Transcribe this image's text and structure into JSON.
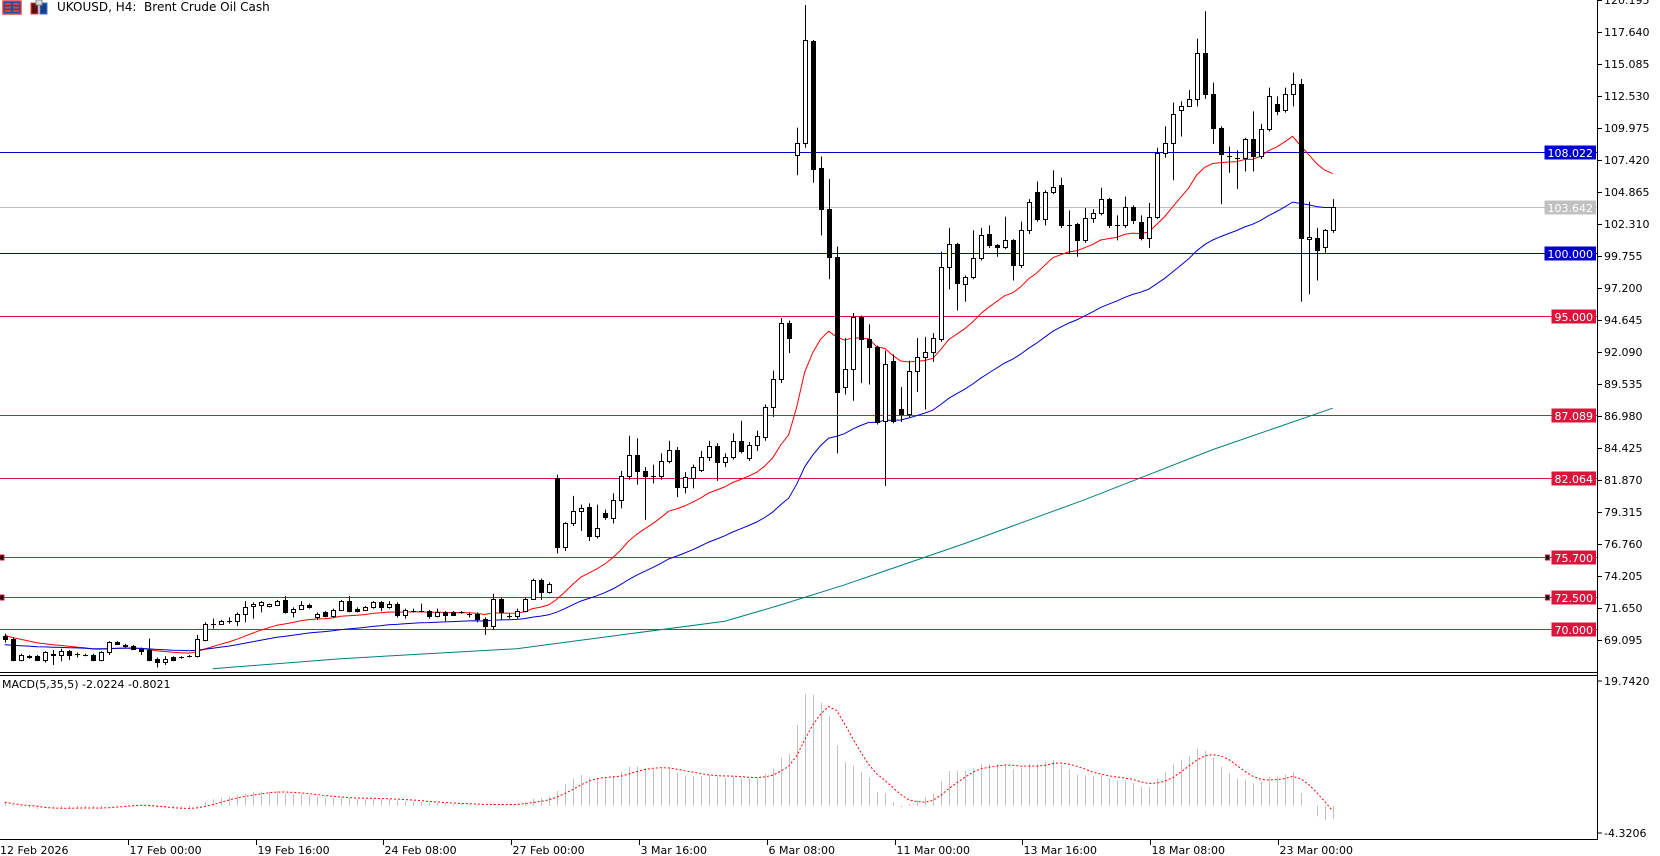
{
  "header": {
    "title": "UKOUSD, H4:  Brent Crude Oil Cash",
    "icons": [
      "one-click-trading-icon",
      "chart-trade-icon"
    ]
  },
  "colors": {
    "bull_body": "#ffffff",
    "bear_body": "#000000",
    "candle_outline": "#000000",
    "ma_fast": "#ff0000",
    "ma_medium": "#0000cd",
    "ma_slow": "#008080",
    "level_red": "#dc143c",
    "level_blue": "#0000cd",
    "bid_line": "#c0c0c0",
    "macd_histogram": "#c0c0c0",
    "macd_signal": "#ff0000"
  },
  "price_axis": {
    "ticks": [
      "120.195",
      "117.640",
      "115.085",
      "112.530",
      "109.975",
      "107.420",
      "104.865",
      "102.310",
      "99.755",
      "97.200",
      "94.645",
      "92.090",
      "89.535",
      "86.980",
      "84.425",
      "81.870",
      "79.315",
      "76.760",
      "74.205",
      "71.650",
      "69.095"
    ]
  },
  "levels": [
    {
      "value": "108.022",
      "color": "#0000cd",
      "label_text": "#ffffff"
    },
    {
      "value": "103.642",
      "color": "#c0c0c0",
      "label_text": "#ffffff"
    },
    {
      "value": "100.000",
      "color": "#0000cd",
      "label_text": "#ffffff"
    },
    {
      "value": "95.000",
      "color": "#dc143c",
      "label_text": "#ffffff"
    },
    {
      "value": "87.089",
      "color": "#dc143c",
      "label_text": "#ffffff"
    },
    {
      "value": "82.064",
      "color": "#dc143c",
      "label_text": "#ffffff"
    },
    {
      "value": "75.700",
      "color": "#dc143c",
      "label_text": "#ffffff",
      "selected": true
    },
    {
      "value": "72.500",
      "color": "#dc143c",
      "label_text": "#ffffff",
      "selected": true
    },
    {
      "value": "70.000",
      "color": "#dc143c",
      "label_text": "#ffffff"
    }
  ],
  "time_axis": {
    "labels": [
      "12 Feb 2026",
      "17 Feb 00:00",
      "19 Feb 16:00",
      "24 Feb 08:00",
      "27 Feb 00:00",
      "3 Mar 16:00",
      "6 Mar 08:00",
      "11 Mar 00:00",
      "13 Mar 16:00",
      "18 Mar 08:00",
      "23 Mar 00:00"
    ]
  },
  "macd": {
    "label": "MACD(5,35,5) -2.0224 -0.8021",
    "scale_max": "19.7420",
    "scale_min": "-4.3206",
    "fast": 5,
    "slow": 35,
    "signal": 5
  },
  "chart_data": {
    "type": "candlestick",
    "symbol": "UKOUSD",
    "timeframe": "H4",
    "ylim": [
      67.5,
      120.195
    ],
    "moving_averages": [
      {
        "color": "#ff0000",
        "kind": "ema",
        "period": 20
      },
      {
        "color": "#0000cd",
        "kind": "ema",
        "period": 50
      }
    ],
    "slow_ma_points": [
      [
        26,
        66.8
      ],
      [
        42,
        67.6
      ],
      [
        64,
        68.4
      ],
      [
        90,
        70.6
      ],
      [
        97,
        71.9
      ],
      [
        105,
        73.5
      ],
      [
        120,
        76.8
      ],
      [
        135,
        80.3
      ],
      [
        151,
        84.3
      ],
      [
        166,
        87.6
      ]
    ],
    "ohlc": [
      [
        69.4,
        69.6,
        68.9,
        69.2
      ],
      [
        69.2,
        69.3,
        67.4,
        67.5
      ],
      [
        67.5,
        68.0,
        67.4,
        67.9
      ],
      [
        67.8,
        67.9,
        67.6,
        67.7
      ],
      [
        67.8,
        67.9,
        67.5,
        67.5
      ],
      [
        67.5,
        68.2,
        67.3,
        68.1
      ],
      [
        68.0,
        68.3,
        67.1,
        67.9
      ],
      [
        67.9,
        68.4,
        67.4,
        68.2
      ],
      [
        68.2,
        68.3,
        67.5,
        67.9
      ],
      [
        67.95,
        68.1,
        67.7,
        67.95
      ],
      [
        67.9,
        68.0,
        67.8,
        67.9
      ],
      [
        67.9,
        68.0,
        67.4,
        67.5
      ],
      [
        67.5,
        68.2,
        67.4,
        68.1
      ],
      [
        68.1,
        69.0,
        67.9,
        68.9
      ],
      [
        68.9,
        69.0,
        68.7,
        68.8
      ],
      [
        68.7,
        68.8,
        68.5,
        68.6
      ],
      [
        68.6,
        68.7,
        68.3,
        68.4
      ],
      [
        68.4,
        68.5,
        67.9,
        68.2
      ],
      [
        68.3,
        69.2,
        67.4,
        67.5
      ],
      [
        67.6,
        67.7,
        66.9,
        67.3
      ],
      [
        67.3,
        67.8,
        67.1,
        67.6
      ],
      [
        67.7,
        67.8,
        67.4,
        67.5
      ],
      [
        67.75,
        67.8,
        67.6,
        67.75
      ],
      [
        67.8,
        67.9,
        67.7,
        67.8
      ],
      [
        67.8,
        69.5,
        67.7,
        69.2
      ],
      [
        69.1,
        70.5,
        69.0,
        70.4
      ],
      [
        70.4,
        70.8,
        70.0,
        70.4
      ],
      [
        70.4,
        70.7,
        70.3,
        70.6
      ],
      [
        70.6,
        70.9,
        70.4,
        70.6
      ],
      [
        70.6,
        71.3,
        70.2,
        71.2
      ],
      [
        71.2,
        72.2,
        70.5,
        71.75
      ],
      [
        71.8,
        72.1,
        70.8,
        71.95
      ],
      [
        71.9,
        72.2,
        71.3,
        72.1
      ],
      [
        71.8,
        72.0,
        71.7,
        71.95
      ],
      [
        71.9,
        72.3,
        71.8,
        72.2
      ],
      [
        72.3,
        72.6,
        71.2,
        71.3
      ],
      [
        71.3,
        71.7,
        70.9,
        71.6
      ],
      [
        71.6,
        72.2,
        71.5,
        71.9
      ],
      [
        71.9,
        72.0,
        71.6,
        71.7
      ],
      [
        70.9,
        71.3,
        70.7,
        71.2
      ],
      [
        71.3,
        71.4,
        70.9,
        71.0
      ],
      [
        71.0,
        71.6,
        70.9,
        71.5
      ],
      [
        71.5,
        72.3,
        71.4,
        72.2
      ],
      [
        72.2,
        72.6,
        71.3,
        71.4
      ],
      [
        71.6,
        71.7,
        71.3,
        71.4
      ],
      [
        71.5,
        71.8,
        71.4,
        71.7
      ],
      [
        71.7,
        72.2,
        71.6,
        72.1
      ],
      [
        72.1,
        72.2,
        71.4,
        71.7
      ],
      [
        71.7,
        72.2,
        71.6,
        72.0
      ],
      [
        72.0,
        72.1,
        70.9,
        71.1
      ],
      [
        71.1,
        71.6,
        70.8,
        71.5
      ],
      [
        71.45,
        71.6,
        71.3,
        71.45
      ],
      [
        71.45,
        72.0,
        71.3,
        71.45
      ],
      [
        71.4,
        71.5,
        70.8,
        71.0
      ],
      [
        71.05,
        71.6,
        70.9,
        71.3
      ],
      [
        71.3,
        71.4,
        70.6,
        71.1
      ],
      [
        71.3,
        71.4,
        71.0,
        71.1
      ],
      [
        71.3,
        71.4,
        71.2,
        71.3
      ],
      [
        71.2,
        71.3,
        70.9,
        71.2
      ],
      [
        71.2,
        71.3,
        70.5,
        70.8
      ],
      [
        70.8,
        70.9,
        69.5,
        70.2
      ],
      [
        70.2,
        72.8,
        69.9,
        72.4
      ],
      [
        72.4,
        72.5,
        70.7,
        71.3
      ],
      [
        71.0,
        71.2,
        70.8,
        71.0
      ],
      [
        71.0,
        71.6,
        70.8,
        71.4
      ],
      [
        71.4,
        72.5,
        71.3,
        72.4
      ],
      [
        72.4,
        74.0,
        72.3,
        73.9
      ],
      [
        73.9,
        74.0,
        72.3,
        72.9
      ],
      [
        72.9,
        73.7,
        72.8,
        73.6
      ],
      [
        82.0,
        82.3,
        76.0,
        76.5
      ],
      [
        76.5,
        78.5,
        76.2,
        78.4
      ],
      [
        78.4,
        80.6,
        78.2,
        79.4
      ],
      [
        79.4,
        79.9,
        77.8,
        79.6
      ],
      [
        79.7,
        80.0,
        77.0,
        77.4
      ],
      [
        77.4,
        79.9,
        77.2,
        78.0
      ],
      [
        79.2,
        79.5,
        78.7,
        78.9
      ],
      [
        78.8,
        80.8,
        78.4,
        80.3
      ],
      [
        80.3,
        82.6,
        79.6,
        82.2
      ],
      [
        82.2,
        85.4,
        81.9,
        83.9
      ],
      [
        83.9,
        85.2,
        81.5,
        82.6
      ],
      [
        82.6,
        82.9,
        78.7,
        82.2
      ],
      [
        82.2,
        83.1,
        81.6,
        82.2
      ],
      [
        82.2,
        84.0,
        81.9,
        83.4
      ],
      [
        83.4,
        85.0,
        83.2,
        84.3
      ],
      [
        84.3,
        84.5,
        80.5,
        81.3
      ],
      [
        81.3,
        82.5,
        80.8,
        82.1
      ],
      [
        82.0,
        83.1,
        81.2,
        82.9
      ],
      [
        82.7,
        84.2,
        82.5,
        83.7
      ],
      [
        83.7,
        85.0,
        83.4,
        84.6
      ],
      [
        84.6,
        84.8,
        81.8,
        83.3
      ],
      [
        83.3,
        84.0,
        82.9,
        83.7
      ],
      [
        83.7,
        85.6,
        83.5,
        85.0
      ],
      [
        85.0,
        86.6,
        84.0,
        84.2
      ],
      [
        83.6,
        84.9,
        83.4,
        84.7
      ],
      [
        84.7,
        85.8,
        84.2,
        85.4
      ],
      [
        85.3,
        87.9,
        85.0,
        87.7
      ],
      [
        87.7,
        90.6,
        86.9,
        89.9
      ],
      [
        89.9,
        94.8,
        89.6,
        94.4
      ],
      [
        94.4,
        94.6,
        92.0,
        93.2
      ],
      [
        107.8,
        110.0,
        106.2,
        108.8
      ],
      [
        108.8,
        119.8,
        108.4,
        117.0
      ],
      [
        116.9,
        117.0,
        105.6,
        106.7
      ],
      [
        106.8,
        107.7,
        101.4,
        103.5
      ],
      [
        103.5,
        105.9,
        97.9,
        99.7
      ],
      [
        99.7,
        100.5,
        84.0,
        88.9
      ],
      [
        89.3,
        93.2,
        88.7,
        90.7
      ],
      [
        90.7,
        95.2,
        88.2,
        94.9
      ],
      [
        94.9,
        95.0,
        89.6,
        93.1
      ],
      [
        93.1,
        94.3,
        89.5,
        92.5
      ],
      [
        92.5,
        92.6,
        86.3,
        86.5
      ],
      [
        86.6,
        92.2,
        81.4,
        91.1
      ],
      [
        91.4,
        91.9,
        86.4,
        86.6
      ],
      [
        87.5,
        89.3,
        86.5,
        87.1
      ],
      [
        87.1,
        91.4,
        86.9,
        90.6
      ],
      [
        90.6,
        93.2,
        88.9,
        91.7
      ],
      [
        91.7,
        93.3,
        87.5,
        92.1
      ],
      [
        92.1,
        93.6,
        91.3,
        93.2
      ],
      [
        93.1,
        100.1,
        92.9,
        98.9
      ],
      [
        98.9,
        102.0,
        97.1,
        100.7
      ],
      [
        100.7,
        100.8,
        95.4,
        97.6
      ],
      [
        97.5,
        98.2,
        96.1,
        98.1
      ],
      [
        98.1,
        101.8,
        97.9,
        99.6
      ],
      [
        99.6,
        102.0,
        99.4,
        101.4
      ],
      [
        101.5,
        102.2,
        100.4,
        100.6
      ],
      [
        100.6,
        100.7,
        99.7,
        100.5
      ],
      [
        100.5,
        102.9,
        100.3,
        101.0
      ],
      [
        101.0,
        101.1,
        97.8,
        99.0
      ],
      [
        99.0,
        102.5,
        98.8,
        101.8
      ],
      [
        101.8,
        104.3,
        101.5,
        104.1
      ],
      [
        104.9,
        105.7,
        102.5,
        102.7
      ],
      [
        102.7,
        105.0,
        102.2,
        104.9
      ],
      [
        104.9,
        106.6,
        104.7,
        105.3
      ],
      [
        105.4,
        106.0,
        102.0,
        102.2
      ],
      [
        102.2,
        103.4,
        99.9,
        102.2
      ],
      [
        102.3,
        102.4,
        99.7,
        101.0
      ],
      [
        101.0,
        103.6,
        100.8,
        102.8
      ],
      [
        102.8,
        103.5,
        102.4,
        103.2
      ],
      [
        103.2,
        105.2,
        103.0,
        104.3
      ],
      [
        104.3,
        104.4,
        102.0,
        102.2
      ],
      [
        102.2,
        103.0,
        101.0,
        102.2
      ],
      [
        102.2,
        104.5,
        102.0,
        103.7
      ],
      [
        103.7,
        103.8,
        102.3,
        102.6
      ],
      [
        102.5,
        103.0,
        101.0,
        101.2
      ],
      [
        101.2,
        104.0,
        100.4,
        102.9
      ],
      [
        102.9,
        108.4,
        102.7,
        108.0
      ],
      [
        108.0,
        110.1,
        107.6,
        108.8
      ],
      [
        108.8,
        112.0,
        105.8,
        111.1
      ],
      [
        111.4,
        112.1,
        109.3,
        111.7
      ],
      [
        111.7,
        113.0,
        111.7,
        112.3
      ],
      [
        112.3,
        117.1,
        111.7,
        116.0
      ],
      [
        116.0,
        119.3,
        112.3,
        112.7
      ],
      [
        112.7,
        113.6,
        108.7,
        110.0
      ],
      [
        110.0,
        110.1,
        103.9,
        107.9
      ],
      [
        107.7,
        108.5,
        106.4,
        107.7
      ],
      [
        107.6,
        108.2,
        105.1,
        107.6
      ],
      [
        107.6,
        109.2,
        106.5,
        109.1
      ],
      [
        109.1,
        111.3,
        106.5,
        107.7
      ],
      [
        107.7,
        110.3,
        107.5,
        109.9
      ],
      [
        109.9,
        113.2,
        109.7,
        112.5
      ],
      [
        111.9,
        112.5,
        111.0,
        111.3
      ],
      [
        111.4,
        113.2,
        111.2,
        112.7
      ],
      [
        112.7,
        114.4,
        111.7,
        113.5
      ],
      [
        113.5,
        113.9,
        96.1,
        101.2
      ],
      [
        101.1,
        104.1,
        96.7,
        101.3
      ],
      [
        101.2,
        102.0,
        97.8,
        100.2
      ],
      [
        100.5,
        101.9,
        100.0,
        101.8
      ],
      [
        101.8,
        104.3,
        101.6,
        103.642
      ]
    ]
  }
}
